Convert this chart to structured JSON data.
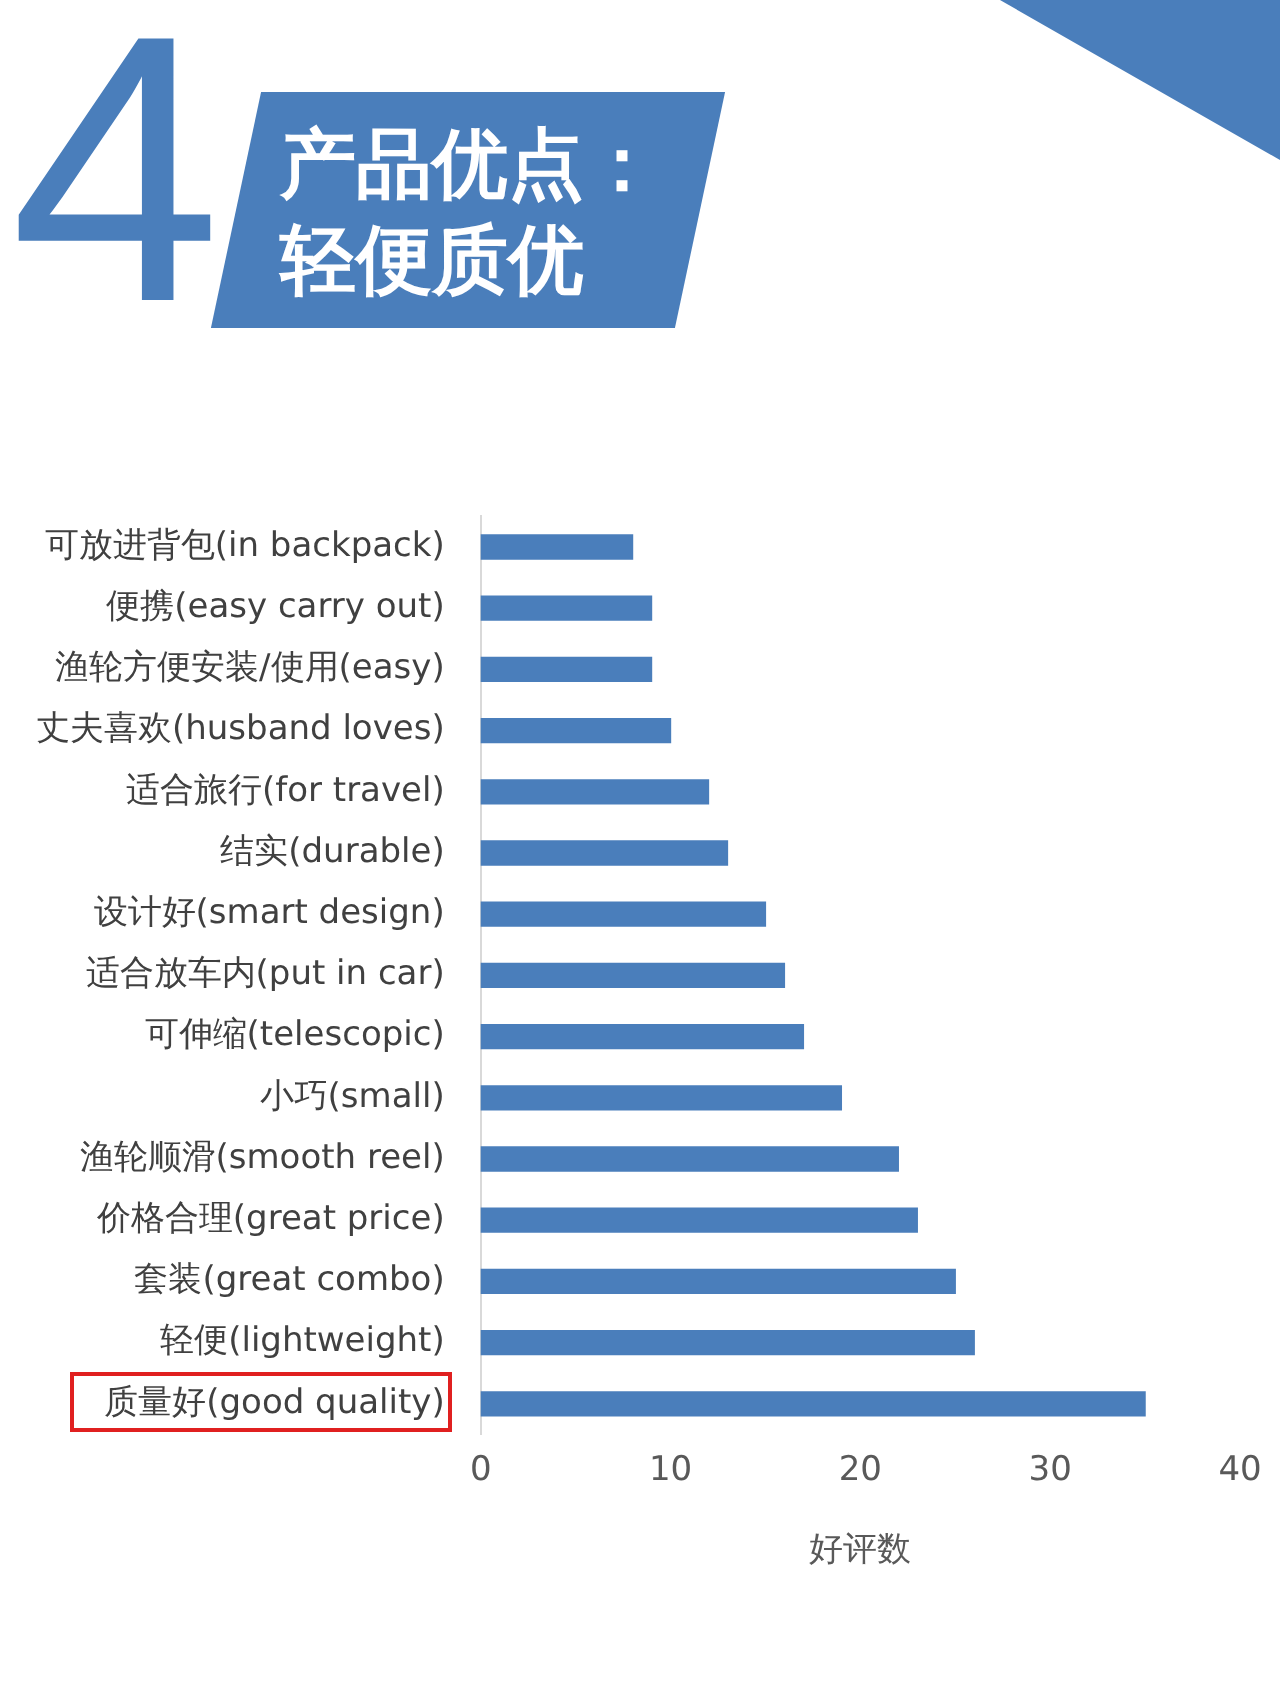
{
  "chart_data": {
    "type": "bar",
    "orientation": "horizontal",
    "title": "产品优点：轻便质优",
    "annotations": [
      "4"
    ],
    "xlabel": "好评数",
    "categories": [
      "可放进背包(in backpack)",
      "便携(easy carry out)",
      "渔轮方便安装/使用(easy)",
      "丈夫喜欢(husband loves)",
      "适合旅行(for travel)",
      "结实(durable)",
      "设计好(smart design)",
      "适合放车内(put in car)",
      "可伸缩(telescopic)",
      "小巧(small)",
      "渔轮顺滑(smooth reel)",
      "价格合理(great price)",
      "套装(great combo)",
      "轻便(lightweight)",
      "质量好(good quality)"
    ],
    "values": [
      8,
      9,
      9,
      10,
      12,
      13,
      15,
      16,
      17,
      19,
      22,
      23,
      25,
      26,
      35
    ],
    "color": "#4a7ebb",
    "xlim": [
      0,
      40
    ],
    "xticks": [
      0,
      10,
      20,
      30,
      40
    ],
    "grid": false,
    "legend": false
  }
}
